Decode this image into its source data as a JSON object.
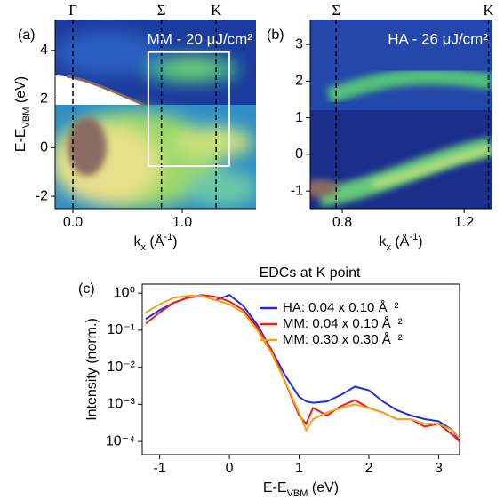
{
  "chart_data": [
    {
      "type": "heatmap",
      "panel_label": "(a)",
      "annotation": "MM - 20 μJ/cm²",
      "xlabel": [
        "k",
        "x",
        " (Å",
        "-1",
        ")"
      ],
      "ylabel": [
        "E-E",
        "VBM",
        " (eV)"
      ],
      "xlim": [
        -0.163,
        1.675
      ],
      "ylim": [
        -2.51,
        5.27
      ],
      "xticks": [
        {
          "value": 0,
          "label": "0.0"
        },
        {
          "value": 1,
          "label": "1.0"
        }
      ],
      "yticks": [
        -2,
        0,
        2,
        4
      ],
      "markers": [
        {
          "label": "Γ",
          "x": 0
        },
        {
          "label": "Σ",
          "x": 0.81
        },
        {
          "label": "K",
          "x": 1.31
        }
      ],
      "box": {
        "x": [
          0.69,
          1.43
        ],
        "y": [
          -0.76,
          3.93
        ]
      }
    },
    {
      "type": "heatmap",
      "panel_label": "(b)",
      "annotation": "HA - 26 μJ/cm²",
      "xlabel": [
        "k",
        "x",
        " (Å",
        "-1",
        ")"
      ],
      "xlim": [
        0.695,
        1.29
      ],
      "ylim": [
        -1.48,
        3.68
      ],
      "xticks": [
        0.8,
        1.2
      ],
      "yticks": [
        -1,
        0,
        1,
        2,
        3
      ],
      "markers": [
        {
          "label": "Σ",
          "x": 0.78
        },
        {
          "label": "K",
          "x": 1.28
        }
      ]
    },
    {
      "type": "line",
      "panel_label": "(c)",
      "title": "EDCs at K point",
      "xlabel": [
        "E-E",
        "VBM",
        " (eV)"
      ],
      "ylabel": "Intensity (norm.)",
      "log_y": true,
      "xlim": [
        -1.25,
        3.3
      ],
      "ylim": [
        4.4e-05,
        1.75
      ],
      "xticks": [
        -1,
        0,
        1,
        2,
        3
      ],
      "yticks": [
        {
          "value": 1,
          "label": "10⁰"
        },
        {
          "value": 0.1,
          "label": "10⁻¹"
        },
        {
          "value": 0.01,
          "label": "10⁻²"
        },
        {
          "value": 0.001,
          "label": "10⁻³"
        },
        {
          "value": 0.0001,
          "label": "10⁻⁴"
        }
      ],
      "x": [
        -1.2,
        -1,
        -0.8,
        -0.6,
        -0.4,
        -0.2,
        0,
        0.2,
        0.4,
        0.6,
        0.8,
        1.0,
        1.1,
        1.2,
        1.4,
        1.6,
        1.8,
        2.0,
        2.2,
        2.4,
        2.6,
        2.8,
        3.0,
        3.2,
        3.3
      ],
      "series": [
        {
          "name": "HA:  0.04 x 0.10 Å⁻²",
          "color": "#1f2fd8",
          "values": [
            0.2,
            0.35,
            0.55,
            0.75,
            0.85,
            0.65,
            0.9,
            0.45,
            0.14,
            0.03,
            0.006,
            0.0016,
            0.0012,
            0.0011,
            0.0012,
            0.0018,
            0.003,
            0.0024,
            0.0012,
            0.0007,
            0.0005,
            0.0004,
            0.00035,
            0.0002,
            0.0001
          ]
        },
        {
          "name": "MM: 0.04 x 0.10 Å⁻²",
          "color": "#e8201a",
          "values": [
            0.15,
            0.3,
            0.55,
            0.75,
            0.9,
            0.8,
            0.6,
            0.35,
            0.12,
            0.03,
            0.004,
            0.0005,
            0.0003,
            0.0008,
            0.0005,
            0.0009,
            0.0013,
            0.0008,
            0.0006,
            0.0004,
            0.0004,
            0.00025,
            0.0003,
            0.00015,
            0.0001
          ]
        },
        {
          "name": "MM: 0.30 x 0.30 Å⁻²",
          "color": "#f5a21a",
          "values": [
            0.3,
            0.5,
            0.75,
            0.85,
            0.85,
            0.65,
            0.5,
            0.3,
            0.1,
            0.025,
            0.004,
            0.0006,
            0.0002,
            0.0004,
            0.0006,
            0.0008,
            0.001,
            0.0008,
            0.0006,
            0.0004,
            0.0004,
            0.0003,
            0.0003,
            0.0002,
            0.00012
          ]
        }
      ]
    }
  ]
}
